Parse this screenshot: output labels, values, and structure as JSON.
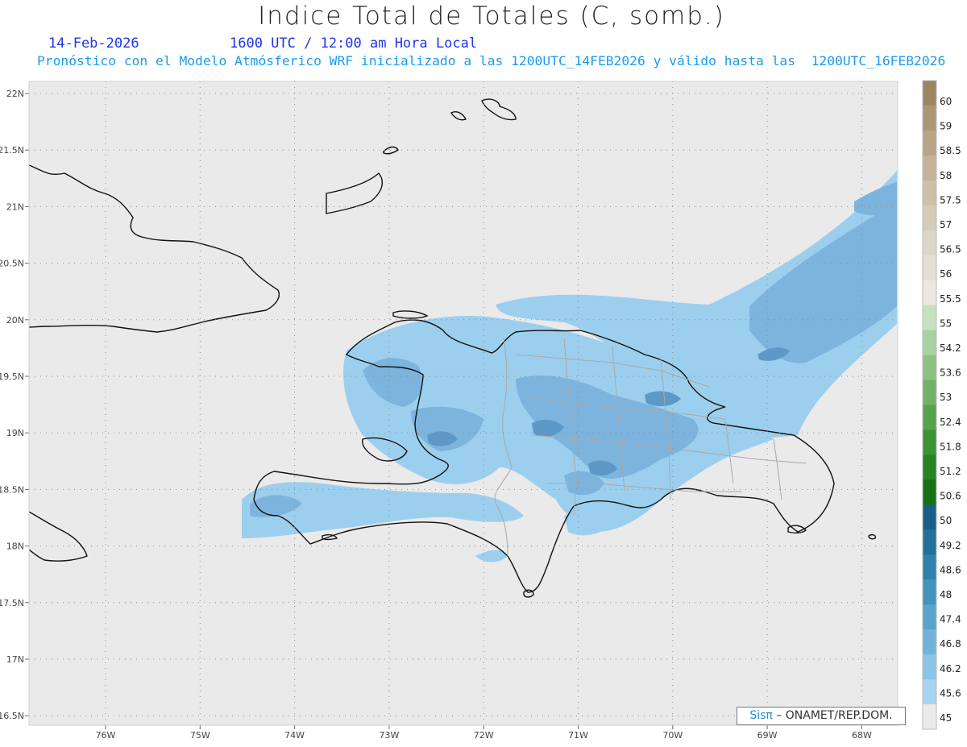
{
  "title": "Indice Total de Totales (C, somb.)",
  "date_label": "14-Feb-2026",
  "time_label": "1600 UTC / 12:00 am Hora Local",
  "forecast_line": "Pronóstico con el Modelo Atmósferico WRF inicializado a las 1200UTC_14FEB2026 y válido hasta las  1200UTC_16FEB2026",
  "credit": {
    "brand": "Sisπ",
    "text": " – ONAMET/REP.DOM."
  },
  "axes": {
    "lat_labels": [
      "22N",
      "21.5N",
      "21N",
      "20.5N",
      "20N",
      "19.5N",
      "19N",
      "18.5N",
      "18N",
      "17.5N",
      "17N",
      "16.5N"
    ],
    "lon_labels": [
      "76W",
      "75W",
      "74W",
      "73W",
      "72W",
      "71W",
      "70W",
      "69W",
      "68W"
    ]
  },
  "colorbar": {
    "levels": [
      "60",
      "59",
      "58.5",
      "58",
      "57.5",
      "57",
      "56.5",
      "56",
      "55.5",
      "55",
      "54.2",
      "53.6",
      "53",
      "52.4",
      "51.8",
      "51.2",
      "50.6",
      "50",
      "49.2",
      "48.6",
      "48",
      "47.4",
      "46.8",
      "46.2",
      "45.6",
      "45"
    ],
    "colors": [
      "#9b8563",
      "#ac9676",
      "#b8a487",
      "#c4b398",
      "#cdbfa8",
      "#d6cbb8",
      "#ddd5c6",
      "#e4ded3",
      "#ebe8e1",
      "#c5e2be",
      "#a9d2a1",
      "#8dc284",
      "#72b267",
      "#57a24c",
      "#3d9232",
      "#27821f",
      "#1a7014",
      "#1a5f88",
      "#22709a",
      "#2f82ab",
      "#4393bb",
      "#5aa4cb",
      "#72b4d9",
      "#8cc4e5",
      "#a7d4f0",
      "#ebebeb"
    ]
  },
  "colors": {
    "map_background": "#eaeaea",
    "coastline": "#111111",
    "province_borders": "#a9a9a9",
    "shade_light": "#9ccfee",
    "shade_mid": "#7db4dd",
    "shade_dark": "#5e98c6"
  }
}
